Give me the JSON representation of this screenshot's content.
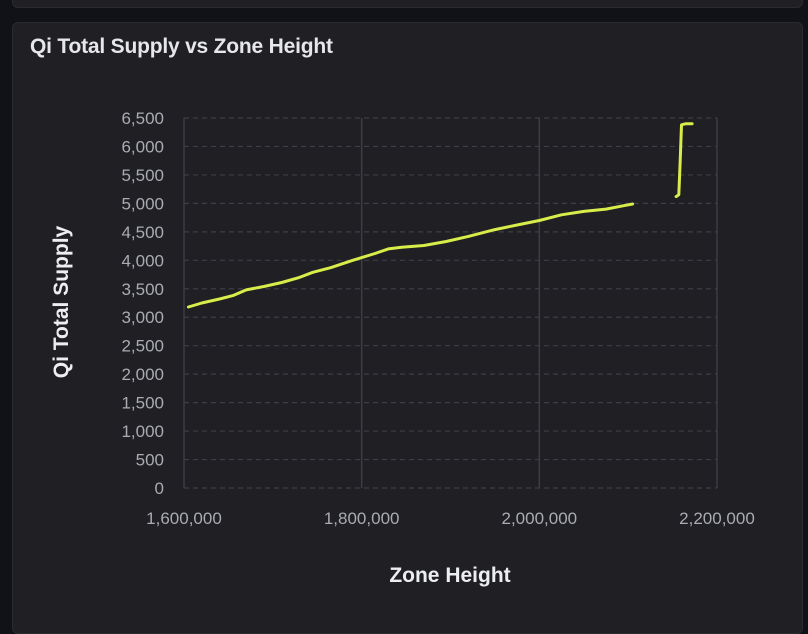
{
  "panel": {
    "title": "Qi Total Supply vs Zone Height"
  },
  "chart_data": {
    "type": "line",
    "title": "Qi Total Supply vs Zone Height",
    "xlabel": "Zone Height",
    "ylabel": "Qi Total Supply",
    "xlim": [
      1600000,
      2200000
    ],
    "ylim": [
      0,
      6500
    ],
    "xticks": [
      1600000,
      1800000,
      2000000,
      2200000
    ],
    "xtick_labels": [
      "1,600,000",
      "1,800,000",
      "2,000,000",
      "2,200,000"
    ],
    "yticks": [
      0,
      500,
      1000,
      1500,
      2000,
      2500,
      3000,
      3500,
      4000,
      4500,
      5000,
      5500,
      6000,
      6500
    ],
    "ytick_labels": [
      "0",
      "500",
      "1,000",
      "1,500",
      "2,000",
      "2,500",
      "3,000",
      "3,500",
      "4,000",
      "4,500",
      "5,000",
      "5,500",
      "6,000",
      "6,500"
    ],
    "grid": true,
    "line_color": "#d8ec4a",
    "series": [
      {
        "values": [
          [
            1605000,
            3180
          ],
          [
            1620000,
            3250
          ],
          [
            1640000,
            3320
          ],
          [
            1655000,
            3380
          ],
          [
            1670000,
            3480
          ],
          [
            1690000,
            3540
          ],
          [
            1710000,
            3610
          ],
          [
            1730000,
            3700
          ],
          [
            1745000,
            3790
          ],
          [
            1765000,
            3870
          ],
          [
            1790000,
            4000
          ],
          [
            1815000,
            4120
          ],
          [
            1830000,
            4200
          ],
          [
            1845000,
            4230
          ],
          [
            1870000,
            4260
          ],
          [
            1895000,
            4330
          ],
          [
            1920000,
            4420
          ],
          [
            1950000,
            4540
          ],
          [
            1975000,
            4620
          ],
          [
            2000000,
            4700
          ],
          [
            2025000,
            4800
          ],
          [
            2050000,
            4860
          ],
          [
            2075000,
            4900
          ],
          [
            2095000,
            4960
          ],
          [
            2105000,
            4990
          ]
        ]
      },
      {
        "values": [
          [
            2154000,
            5120
          ],
          [
            2157000,
            5150
          ],
          [
            2158500,
            5700
          ],
          [
            2160000,
            6380
          ],
          [
            2165000,
            6400
          ],
          [
            2172000,
            6400
          ]
        ]
      }
    ]
  }
}
